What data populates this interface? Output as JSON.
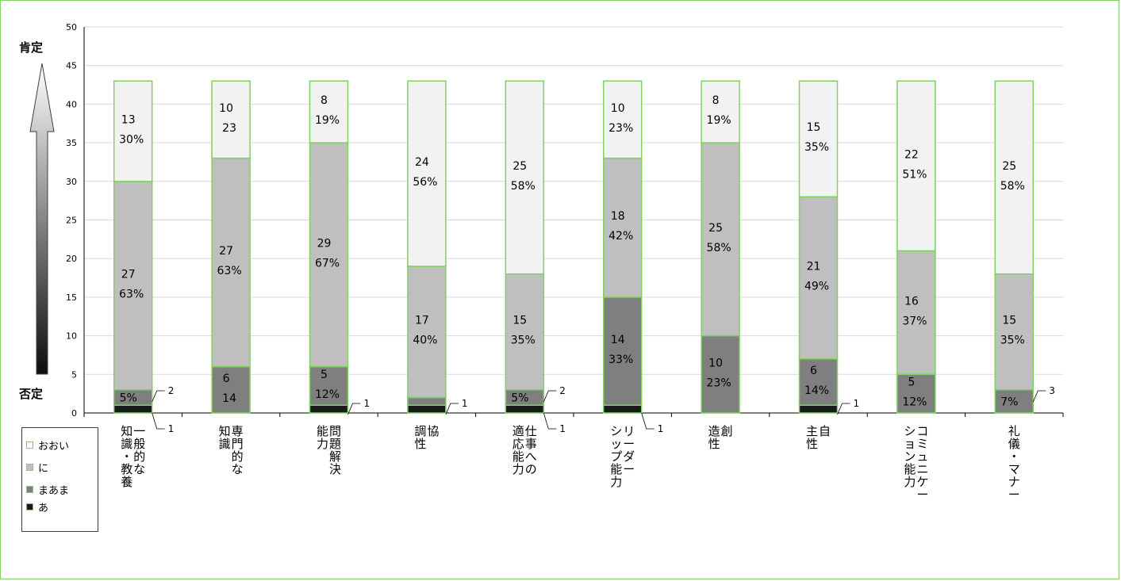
{
  "chart_data": {
    "type": "bar",
    "stacked": true,
    "y_ticks": [
      "0",
      "5",
      "10",
      "15",
      "20",
      "25",
      "30",
      "35",
      "40",
      "45",
      "50"
    ],
    "ylim": [
      0,
      50
    ],
    "grid": true,
    "axis_top_label": "肯定",
    "axis_bottom_label": "否定",
    "categories": [
      "一般的な知識・教養",
      "専門的な知識",
      "問題解決能力",
      "協調性",
      "仕事への適応能力",
      "リーダーシップ能力",
      "創造性",
      "自主性",
      "コミュニケーション能力",
      "礼儀・マナー"
    ],
    "category_label_lines": [
      [
        "一般的な",
        "知識・教養"
      ],
      [
        "専門的な",
        "知識"
      ],
      [
        "問題解決",
        "能力"
      ],
      [
        "協",
        "調性"
      ],
      [
        "仕事への",
        "適応能力"
      ],
      [
        "リーダー",
        "シップ能力"
      ],
      [
        "創",
        "造性"
      ],
      [
        "自",
        "主性"
      ],
      [
        "コミュニケー",
        "ション能力"
      ],
      [
        "礼儀・マナー"
      ]
    ],
    "series": [
      {
        "name": "あ",
        "color": "#1a1a1a",
        "values": [
          1,
          0,
          1,
          1,
          1,
          1,
          0,
          1,
          0,
          0
        ]
      },
      {
        "name": "まあま",
        "color": "#7f7f7f",
        "values": [
          2,
          6,
          5,
          1,
          2,
          14,
          10,
          6,
          5,
          3
        ]
      },
      {
        "name": "に",
        "color": "#bfbfbf",
        "values": [
          27,
          27,
          29,
          17,
          15,
          18,
          25,
          21,
          16,
          15
        ]
      },
      {
        "name": "おおい",
        "color": "#f2f2f2",
        "values": [
          13,
          10,
          8,
          24,
          25,
          10,
          8,
          15,
          22,
          25
        ]
      }
    ],
    "legend_order": [
      "おおい",
      "に",
      "まあま",
      "あ"
    ],
    "bar_border_color": "#7fd160",
    "data_labels": [
      {
        "cat": 0,
        "seg": 3,
        "lines": [
          "13",
          "30%"
        ]
      },
      {
        "cat": 0,
        "seg": 2,
        "lines": [
          "27",
          "63%"
        ]
      },
      {
        "cat": 0,
        "seg": 1,
        "lines": [
          "5%"
        ]
      },
      {
        "cat": 1,
        "seg": 3,
        "lines": [
          "10",
          "23"
        ]
      },
      {
        "cat": 1,
        "seg": 2,
        "lines": [
          "27",
          "63%"
        ]
      },
      {
        "cat": 1,
        "seg": 1,
        "lines": [
          "6",
          "14"
        ]
      },
      {
        "cat": 2,
        "seg": 3,
        "lines": [
          "8",
          "19%"
        ]
      },
      {
        "cat": 2,
        "seg": 2,
        "lines": [
          "29",
          "67%"
        ]
      },
      {
        "cat": 2,
        "seg": 1,
        "lines": [
          "5",
          "12%"
        ]
      },
      {
        "cat": 3,
        "seg": 3,
        "lines": [
          "24",
          "56%"
        ]
      },
      {
        "cat": 3,
        "seg": 2,
        "lines": [
          "17",
          "40%"
        ]
      },
      {
        "cat": 4,
        "seg": 3,
        "lines": [
          "25",
          "58%"
        ]
      },
      {
        "cat": 4,
        "seg": 2,
        "lines": [
          "15",
          "35%"
        ]
      },
      {
        "cat": 4,
        "seg": 1,
        "lines": [
          "5%"
        ]
      },
      {
        "cat": 5,
        "seg": 3,
        "lines": [
          "10",
          "23%"
        ]
      },
      {
        "cat": 5,
        "seg": 2,
        "lines": [
          "18",
          "42%"
        ]
      },
      {
        "cat": 5,
        "seg": 1,
        "lines": [
          "14",
          "33%"
        ]
      },
      {
        "cat": 6,
        "seg": 3,
        "lines": [
          "8",
          "19%"
        ]
      },
      {
        "cat": 6,
        "seg": 2,
        "lines": [
          "25",
          "58%"
        ]
      },
      {
        "cat": 6,
        "seg": 1,
        "lines": [
          "10",
          "23%"
        ]
      },
      {
        "cat": 7,
        "seg": 3,
        "lines": [
          "15",
          "35%"
        ]
      },
      {
        "cat": 7,
        "seg": 2,
        "lines": [
          "21",
          "49%"
        ]
      },
      {
        "cat": 7,
        "seg": 1,
        "lines": [
          "6",
          "14%"
        ]
      },
      {
        "cat": 8,
        "seg": 3,
        "lines": [
          "22",
          "51%"
        ]
      },
      {
        "cat": 8,
        "seg": 2,
        "lines": [
          "16",
          "37%"
        ]
      },
      {
        "cat": 8,
        "seg": 1,
        "lines": [
          "5",
          "12%"
        ]
      },
      {
        "cat": 9,
        "seg": 3,
        "lines": [
          "25",
          "58%"
        ]
      },
      {
        "cat": 9,
        "seg": 2,
        "lines": [
          "15",
          "35%"
        ]
      },
      {
        "cat": 9,
        "seg": 1,
        "lines": [
          "7%"
        ]
      }
    ],
    "callouts": [
      {
        "cat": 0,
        "text": "1",
        "side": "below"
      },
      {
        "cat": 0,
        "text": "2",
        "side": "right"
      },
      {
        "cat": 2,
        "text": "1",
        "side": "right"
      },
      {
        "cat": 3,
        "text": "1",
        "side": "right"
      },
      {
        "cat": 4,
        "text": "1",
        "side": "below"
      },
      {
        "cat": 4,
        "text": "2",
        "side": "right"
      },
      {
        "cat": 5,
        "text": "1",
        "side": "below"
      },
      {
        "cat": 7,
        "text": "1",
        "side": "right"
      },
      {
        "cat": 9,
        "text": "3",
        "side": "right"
      }
    ]
  }
}
